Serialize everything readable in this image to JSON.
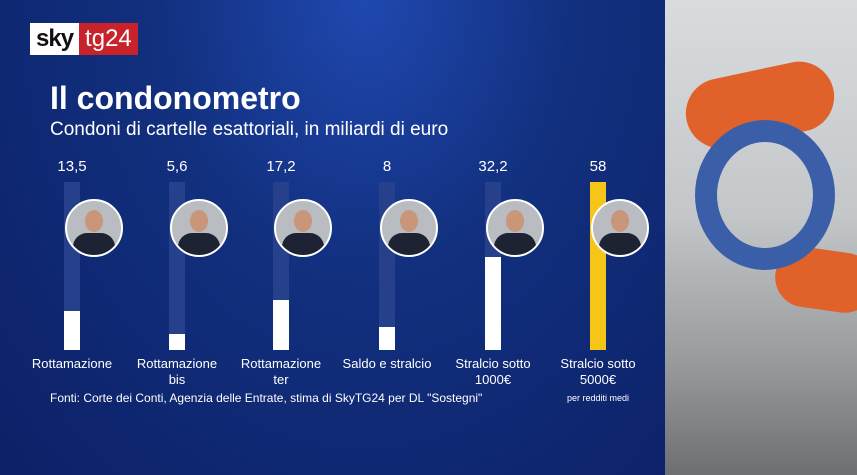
{
  "brand": {
    "logo_left": "sky",
    "logo_right": "tg24"
  },
  "header": {
    "title": "Il condonometro",
    "subtitle": "Condoni di cartelle esattoriali, in miliardi di euro"
  },
  "chart_data": {
    "type": "bar",
    "title": "Il condonometro",
    "subtitle": "Condoni di cartelle esattoriali, in miliardi di euro",
    "categories": [
      "Rottamazione",
      "Rottamazione bis",
      "Rottamazione ter",
      "Saldo e stralcio",
      "Stralcio sotto 1000€",
      "Stralcio sotto 5000€"
    ],
    "category_lines": [
      [
        "Rottamazione",
        ""
      ],
      [
        "Rottamazione",
        "bis"
      ],
      [
        "Rottamazione",
        "ter"
      ],
      [
        "Saldo e stralcio",
        ""
      ],
      [
        "Stralcio sotto",
        "1000€"
      ],
      [
        "Stralcio sotto",
        "5000€"
      ]
    ],
    "values": [
      13.5,
      5.6,
      17.2,
      8,
      32.2,
      58
    ],
    "value_labels": [
      "13,5",
      "5,6",
      "17,2",
      "8",
      "32,2",
      "58"
    ],
    "highlight_index": 5,
    "ylim": [
      0,
      58
    ],
    "colors": {
      "normal": "#ffffff",
      "highlight": "#f5c518",
      "track": "#27408c"
    },
    "note": "per redditi medi"
  },
  "source": "Fonti: Corte dei Conti, Agenzia delle Entrate, stima di SkyTG24 per DL \"Sostegni\""
}
